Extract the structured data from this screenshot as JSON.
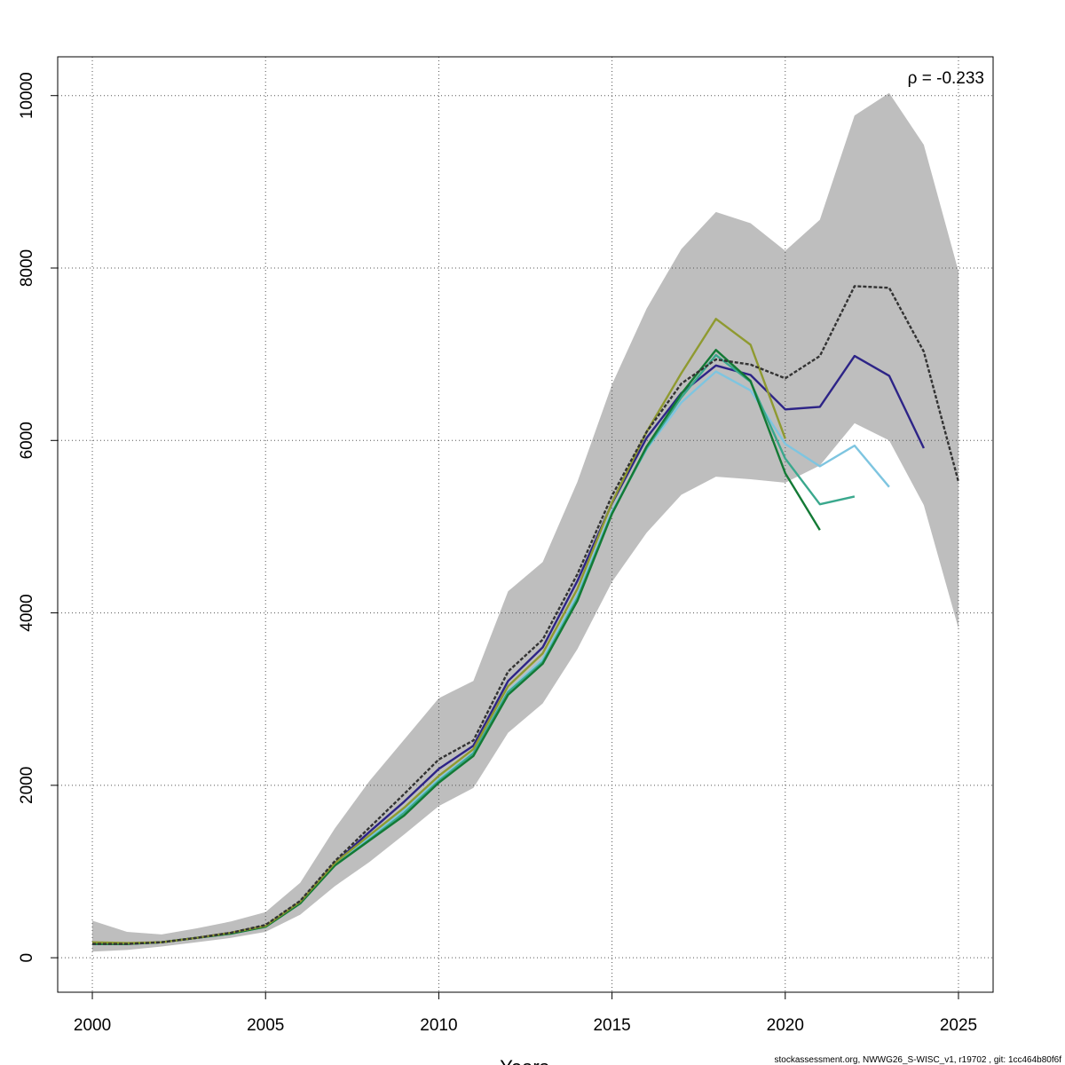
{
  "chart_data": {
    "type": "line",
    "title": "",
    "xlabel": "Years",
    "ylabel": "",
    "xlim": [
      1999.0,
      2026.0
    ],
    "ylim": [
      -400,
      10450
    ],
    "x_ticks": [
      2000,
      2005,
      2010,
      2015,
      2020,
      2025
    ],
    "y_ticks": [
      0,
      2000,
      4000,
      6000,
      8000,
      10000
    ],
    "grid": true,
    "annotation": "ρ = -0.233",
    "footer": "stockassessment.org, NWWG26_S-WISC_v1, r19702 , git: 1cc464b80f6f",
    "band": {
      "color": "#bebebe",
      "x": [
        2000,
        2001,
        2002,
        2003,
        2004,
        2005,
        2006,
        2007,
        2008,
        2009,
        2010,
        2011,
        2012,
        2013,
        2014,
        2015,
        2016,
        2017,
        2018,
        2019,
        2020,
        2021,
        2022,
        2023,
        2024,
        2025
      ],
      "upper": [
        430,
        300,
        270,
        340,
        420,
        530,
        870,
        1500,
        2050,
        2530,
        3010,
        3210,
        4250,
        4590,
        5520,
        6650,
        7530,
        8220,
        8650,
        8520,
        8200,
        8560,
        9770,
        10030,
        9430,
        7960
      ],
      "lower": [
        70,
        90,
        130,
        180,
        230,
        300,
        500,
        830,
        1110,
        1430,
        1760,
        1970,
        2610,
        2950,
        3580,
        4360,
        4930,
        5370,
        5580,
        5550,
        5510,
        5710,
        6200,
        6000,
        5250,
        3820
      ]
    },
    "series": [
      {
        "color": "#333333",
        "dashed": true,
        "x": [
          2000,
          2001,
          2002,
          2003,
          2004,
          2005,
          2006,
          2007,
          2008,
          2009,
          2010,
          2011,
          2012,
          2013,
          2014,
          2015,
          2016,
          2017,
          2018,
          2019,
          2020,
          2021,
          2022,
          2023,
          2024,
          2025
        ],
        "values": [
          160,
          160,
          180,
          230,
          290,
          380,
          660,
          1120,
          1510,
          1900,
          2300,
          2520,
          3320,
          3690,
          4450,
          5360,
          6100,
          6660,
          6940,
          6880,
          6720,
          6980,
          7790,
          7770,
          7030,
          5520
        ]
      },
      {
        "color": "#2d2487",
        "x": [
          2000,
          2001,
          2002,
          2003,
          2004,
          2005,
          2006,
          2007,
          2008,
          2009,
          2010,
          2011,
          2012,
          2013,
          2014,
          2015,
          2016,
          2017,
          2018,
          2019,
          2020,
          2021,
          2022,
          2023,
          2024
        ],
        "values": [
          160,
          160,
          180,
          230,
          290,
          370,
          650,
          1100,
          1460,
          1810,
          2190,
          2460,
          3210,
          3600,
          4370,
          5270,
          6030,
          6550,
          6870,
          6760,
          6360,
          6390,
          6980,
          6750,
          5910
        ]
      },
      {
        "color": "#7ec5e0",
        "x": [
          2000,
          2001,
          2002,
          2003,
          2004,
          2005,
          2006,
          2007,
          2008,
          2009,
          2010,
          2011,
          2012,
          2013,
          2014,
          2015,
          2016,
          2017,
          2018,
          2019,
          2020,
          2021,
          2022,
          2023
        ],
        "values": [
          160,
          160,
          180,
          230,
          280,
          360,
          640,
          1080,
          1390,
          1710,
          2070,
          2380,
          3090,
          3460,
          4210,
          5180,
          5900,
          6440,
          6800,
          6580,
          5960,
          5700,
          5940,
          5460
        ]
      },
      {
        "color": "#3aa88d",
        "x": [
          2000,
          2001,
          2002,
          2003,
          2004,
          2005,
          2006,
          2007,
          2008,
          2009,
          2010,
          2011,
          2012,
          2013,
          2014,
          2015,
          2016,
          2017,
          2018,
          2019,
          2020,
          2021,
          2022
        ],
        "values": [
          160,
          160,
          180,
          230,
          280,
          360,
          630,
          1070,
          1370,
          1680,
          2050,
          2370,
          3080,
          3430,
          4170,
          5160,
          5910,
          6500,
          6990,
          6680,
          5790,
          5260,
          5350
        ]
      },
      {
        "color": "#137a35",
        "x": [
          2000,
          2001,
          2002,
          2003,
          2004,
          2005,
          2006,
          2007,
          2008,
          2009,
          2010,
          2011,
          2012,
          2013,
          2014,
          2015,
          2016,
          2017,
          2018,
          2019,
          2020,
          2021
        ],
        "values": [
          160,
          160,
          180,
          230,
          280,
          360,
          630,
          1070,
          1360,
          1650,
          2030,
          2340,
          3050,
          3410,
          4140,
          5150,
          5930,
          6540,
          7050,
          6690,
          5620,
          4960
        ]
      },
      {
        "color": "#8f9a30",
        "x": [
          2000,
          2001,
          2002,
          2003,
          2004,
          2005,
          2006,
          2007,
          2008,
          2009,
          2010,
          2011,
          2012,
          2013,
          2014,
          2015,
          2016,
          2017,
          2018,
          2019,
          2020
        ],
        "values": [
          180,
          170,
          180,
          230,
          290,
          370,
          650,
          1100,
          1420,
          1740,
          2110,
          2420,
          3150,
          3530,
          4280,
          5280,
          6100,
          6780,
          7410,
          7110,
          6020
        ]
      }
    ]
  }
}
